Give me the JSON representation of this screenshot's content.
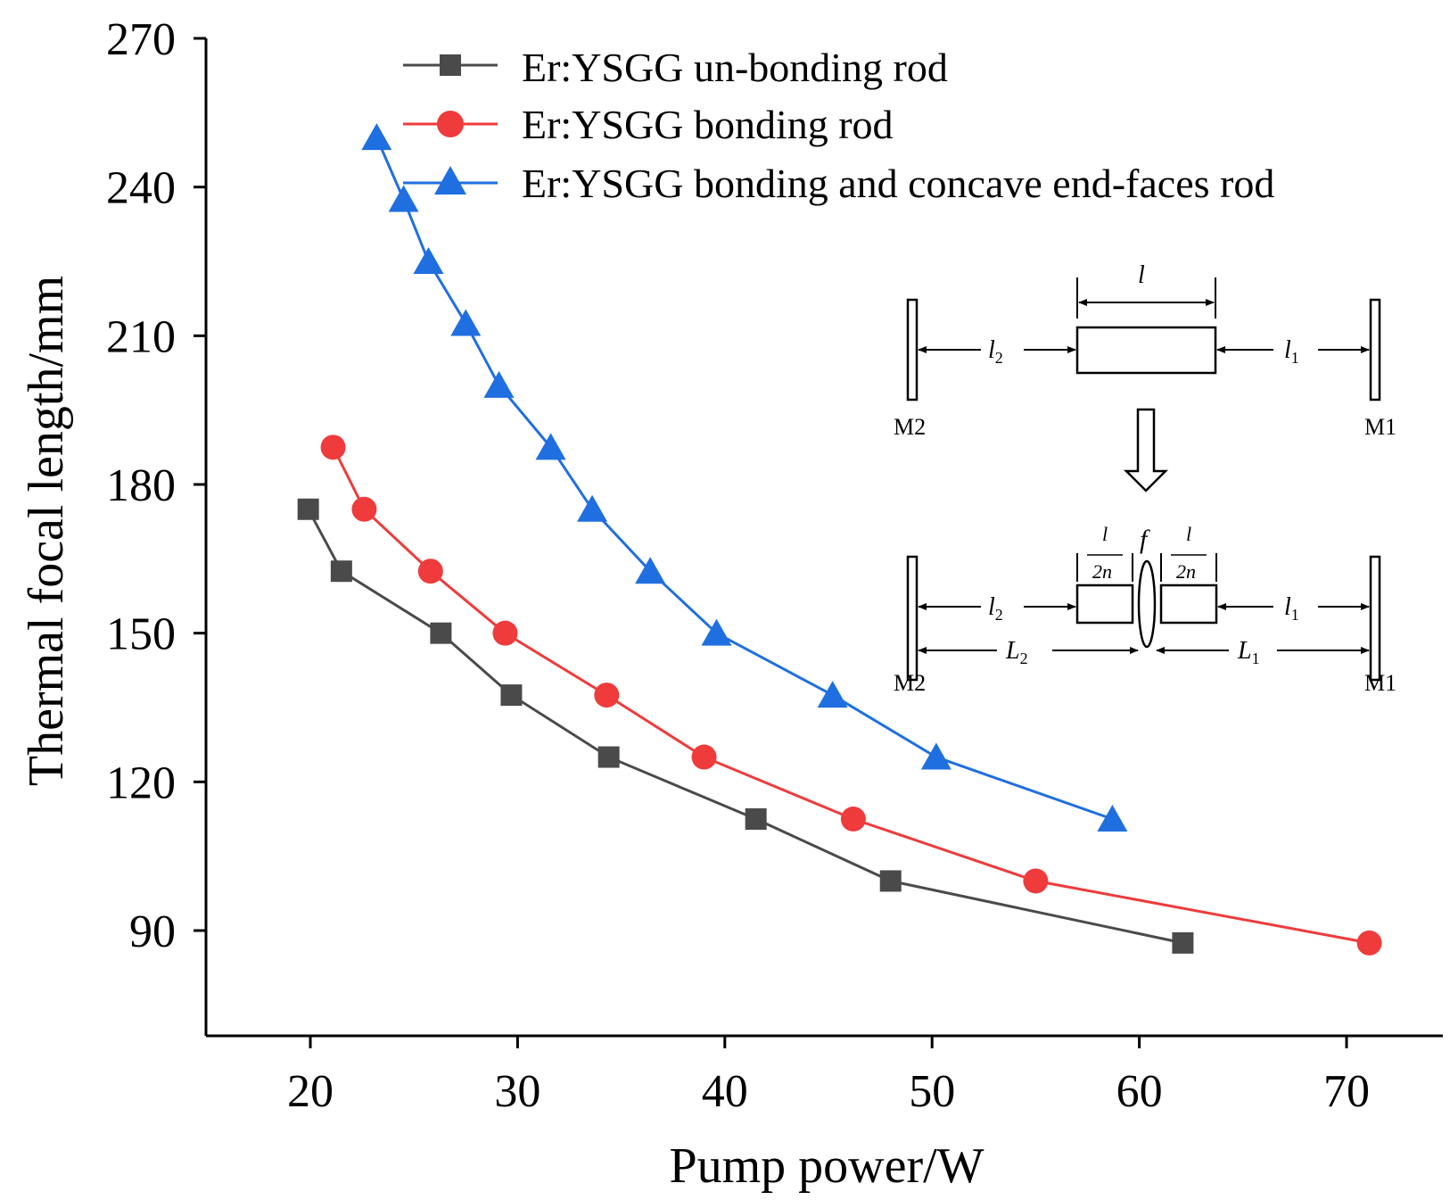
{
  "chart_data": {
    "type": "line",
    "title": "",
    "xlabel": "Pump power/W",
    "ylabel": "Thermal focal length/mm",
    "xlim": [
      15,
      75
    ],
    "ylim": [
      70,
      270
    ],
    "x_ticks": [
      20,
      30,
      40,
      50,
      60,
      70
    ],
    "y_ticks": [
      90,
      120,
      150,
      180,
      210,
      240,
      270
    ],
    "x_tick_labels": [
      "20",
      "30",
      "40",
      "50",
      "60",
      "70"
    ],
    "y_tick_labels": [
      "90",
      "120",
      "150",
      "180",
      "210",
      "240",
      "270"
    ],
    "grid": false,
    "legend_position": "top-right",
    "series": [
      {
        "name": "Er:YSGG un-bonding rod",
        "color": "#4a4a4a",
        "marker": "square",
        "x": [
          19.9,
          21.5,
          26.3,
          29.7,
          34.4,
          41.5,
          48.0,
          62.1
        ],
        "y": [
          175,
          162.5,
          150,
          137.5,
          125,
          112.5,
          100,
          87.5
        ]
      },
      {
        "name": "Er:YSGG bonding rod",
        "color": "#ef3b3b",
        "marker": "circle",
        "x": [
          21.1,
          22.6,
          25.8,
          29.4,
          34.3,
          39.0,
          46.2,
          55.0,
          71.1
        ],
        "y": [
          187.5,
          175,
          162.5,
          150,
          137.5,
          125,
          112.5,
          100,
          87.5
        ]
      },
      {
        "name": "Er:YSGG bonding and concave end-faces rod",
        "color": "#1f6fe0",
        "marker": "triangle",
        "x": [
          23.2,
          24.5,
          25.7,
          27.5,
          29.1,
          31.6,
          33.6,
          36.4,
          39.6,
          45.2,
          50.2,
          58.7
        ],
        "y": [
          250,
          237.5,
          225,
          212.5,
          200,
          187.5,
          175,
          162.5,
          150,
          137.5,
          125,
          112.5
        ]
      }
    ],
    "inset": {
      "top": {
        "rod_label": "l",
        "left_gap_label": "l",
        "left_gap_sub": "2",
        "right_gap_label": "l",
        "right_gap_sub": "1",
        "left_mirror": "M2",
        "right_mirror": "M1"
      },
      "bottom": {
        "lens_label": "f",
        "half_rod_num": "l",
        "half_rod_den": "2n",
        "left_gap_label": "l",
        "left_gap_sub": "2",
        "right_gap_label": "l",
        "right_gap_sub": "1",
        "left_L_label": "L",
        "left_L_sub": "2",
        "right_L_label": "L",
        "right_L_sub": "1",
        "left_mirror": "M2",
        "right_mirror": "M1"
      }
    }
  }
}
